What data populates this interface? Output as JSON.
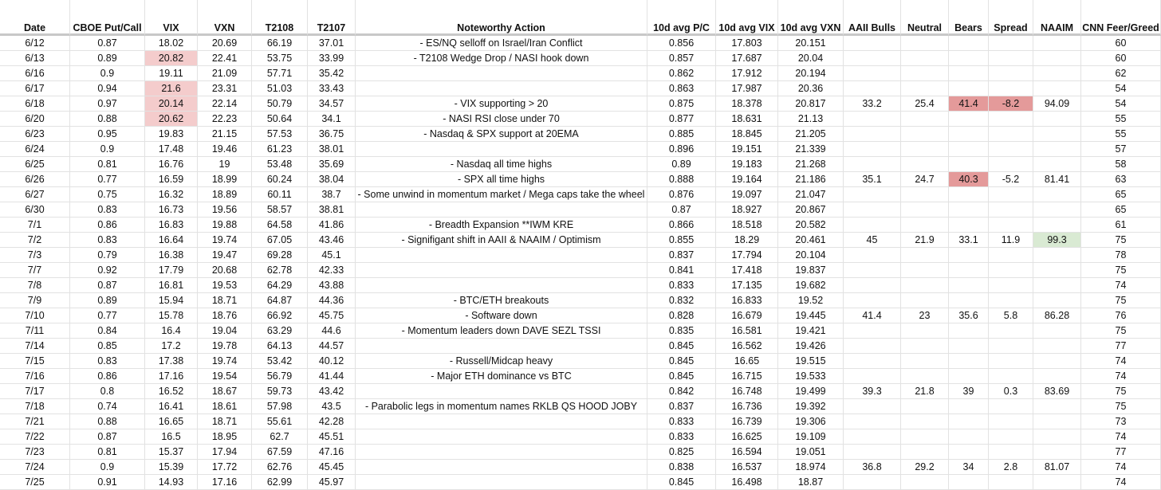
{
  "table": {
    "header": [
      "Date",
      "CBOE Put/Call",
      "VIX",
      "VXN",
      "T2108",
      "T2107",
      "Noteworthy Action",
      "10d avg P/C",
      "10d avg VIX",
      "10d avg VXN",
      "AAII Bulls",
      "Neutral",
      "Bears",
      "Spread",
      "NAAIM",
      "CNN Feer/Greed"
    ],
    "rows": [
      [
        "6/12",
        "0.87",
        "18.02",
        "20.69",
        "66.19",
        "37.01",
        "- ES/NQ selloff on Israel/Iran Conflict",
        "0.856",
        "17.803",
        "20.151",
        null,
        null,
        null,
        null,
        null,
        "60"
      ],
      [
        "6/13",
        "0.89",
        "20.82",
        "22.41",
        "53.75",
        "33.99",
        "- T2108 Wedge Drop / NASI hook down",
        "0.857",
        "17.687",
        "20.04",
        null,
        null,
        null,
        null,
        null,
        "60"
      ],
      [
        "6/16",
        "0.9",
        "19.11",
        "21.09",
        "57.71",
        "35.42",
        null,
        "0.862",
        "17.912",
        "20.194",
        null,
        null,
        null,
        null,
        null,
        "62"
      ],
      [
        "6/17",
        "0.94",
        "21.6",
        "23.31",
        "51.03",
        "33.43",
        null,
        "0.863",
        "17.987",
        "20.36",
        null,
        null,
        null,
        null,
        null,
        "54"
      ],
      [
        "6/18",
        "0.97",
        "20.14",
        "22.14",
        "50.79",
        "34.57",
        "- VIX supporting > 20",
        "0.875",
        "18.378",
        "20.817",
        "33.2",
        "25.4",
        "41.4",
        "-8.2",
        "94.09",
        "54"
      ],
      [
        "6/20",
        "0.88",
        "20.62",
        "22.23",
        "50.64",
        "34.1",
        "- NASI RSI close under 70",
        "0.877",
        "18.631",
        "21.13",
        null,
        null,
        null,
        null,
        null,
        "55"
      ],
      [
        "6/23",
        "0.95",
        "19.83",
        "21.15",
        "57.53",
        "36.75",
        "- Nasdaq & SPX support at 20EMA",
        "0.885",
        "18.845",
        "21.205",
        null,
        null,
        null,
        null,
        null,
        "55"
      ],
      [
        "6/24",
        "0.9",
        "17.48",
        "19.46",
        "61.23",
        "38.01",
        null,
        "0.896",
        "19.151",
        "21.339",
        null,
        null,
        null,
        null,
        null,
        "57"
      ],
      [
        "6/25",
        "0.81",
        "16.76",
        "19",
        "53.48",
        "35.69",
        "- Nasdaq all time highs",
        "0.89",
        "19.183",
        "21.268",
        null,
        null,
        null,
        null,
        null,
        "58"
      ],
      [
        "6/26",
        "0.77",
        "16.59",
        "18.99",
        "60.24",
        "38.04",
        "- SPX all time highs",
        "0.888",
        "19.164",
        "21.186",
        "35.1",
        "24.7",
        "40.3",
        "-5.2",
        "81.41",
        "63"
      ],
      [
        "6/27",
        "0.75",
        "16.32",
        "18.89",
        "60.11",
        "38.7",
        "- Some unwind in momentum market / Mega caps take the wheel",
        "0.876",
        "19.097",
        "21.047",
        null,
        null,
        null,
        null,
        null,
        "65"
      ],
      [
        "6/30",
        "0.83",
        "16.73",
        "19.56",
        "58.57",
        "38.81",
        null,
        "0.87",
        "18.927",
        "20.867",
        null,
        null,
        null,
        null,
        null,
        "65"
      ],
      [
        "7/1",
        "0.86",
        "16.83",
        "19.88",
        "64.58",
        "41.86",
        "- Breadth Expansion **IWM KRE",
        "0.866",
        "18.518",
        "20.582",
        null,
        null,
        null,
        null,
        null,
        "61"
      ],
      [
        "7/2",
        "0.83",
        "16.64",
        "19.74",
        "67.05",
        "43.46",
        "- Signifigant shift in AAII & NAAIM / Optimism",
        "0.855",
        "18.29",
        "20.461",
        "45",
        "21.9",
        "33.1",
        "11.9",
        "99.3",
        "75"
      ],
      [
        "7/3",
        "0.79",
        "16.38",
        "19.47",
        "69.28",
        "45.1",
        null,
        "0.837",
        "17.794",
        "20.104",
        null,
        null,
        null,
        null,
        null,
        "78"
      ],
      [
        "7/7",
        "0.92",
        "17.79",
        "20.68",
        "62.78",
        "42.33",
        null,
        "0.841",
        "17.418",
        "19.837",
        null,
        null,
        null,
        null,
        null,
        "75"
      ],
      [
        "7/8",
        "0.87",
        "16.81",
        "19.53",
        "64.29",
        "43.88",
        null,
        "0.833",
        "17.135",
        "19.682",
        null,
        null,
        null,
        null,
        null,
        "74"
      ],
      [
        "7/9",
        "0.89",
        "15.94",
        "18.71",
        "64.87",
        "44.36",
        "- BTC/ETH breakouts",
        "0.832",
        "16.833",
        "19.52",
        null,
        null,
        null,
        null,
        null,
        "75"
      ],
      [
        "7/10",
        "0.77",
        "15.78",
        "18.76",
        "66.92",
        "45.75",
        "- Software down",
        "0.828",
        "16.679",
        "19.445",
        "41.4",
        "23",
        "35.6",
        "5.8",
        "86.28",
        "76"
      ],
      [
        "7/11",
        "0.84",
        "16.4",
        "19.04",
        "63.29",
        "44.6",
        "- Momentum leaders down DAVE SEZL TSSI",
        "0.835",
        "16.581",
        "19.421",
        null,
        null,
        null,
        null,
        null,
        "75"
      ],
      [
        "7/14",
        "0.85",
        "17.2",
        "19.78",
        "64.13",
        "44.57",
        null,
        "0.845",
        "16.562",
        "19.426",
        null,
        null,
        null,
        null,
        null,
        "77"
      ],
      [
        "7/15",
        "0.83",
        "17.38",
        "19.74",
        "53.42",
        "40.12",
        "- Russell/Midcap heavy",
        "0.845",
        "16.65",
        "19.515",
        null,
        null,
        null,
        null,
        null,
        "74"
      ],
      [
        "7/16",
        "0.86",
        "17.16",
        "19.54",
        "56.79",
        "41.44",
        "- Major ETH dominance vs BTC",
        "0.845",
        "16.715",
        "19.533",
        null,
        null,
        null,
        null,
        null,
        "74"
      ],
      [
        "7/17",
        "0.8",
        "16.52",
        "18.67",
        "59.73",
        "43.42",
        null,
        "0.842",
        "16.748",
        "19.499",
        "39.3",
        "21.8",
        "39",
        "0.3",
        "83.69",
        "75"
      ],
      [
        "7/18",
        "0.74",
        "16.41",
        "18.61",
        "57.98",
        "43.5",
        "- Parabolic legs in momentum names RKLB QS HOOD JOBY",
        "0.837",
        "16.736",
        "19.392",
        null,
        null,
        null,
        null,
        null,
        "75"
      ],
      [
        "7/21",
        "0.88",
        "16.65",
        "18.71",
        "55.61",
        "42.28",
        null,
        "0.833",
        "16.739",
        "19.306",
        null,
        null,
        null,
        null,
        null,
        "73"
      ],
      [
        "7/22",
        "0.87",
        "16.5",
        "18.95",
        "62.7",
        "45.51",
        null,
        "0.833",
        "16.625",
        "19.109",
        null,
        null,
        null,
        null,
        null,
        "74"
      ],
      [
        "7/23",
        "0.81",
        "15.37",
        "17.94",
        "67.59",
        "47.16",
        null,
        "0.825",
        "16.594",
        "19.051",
        null,
        null,
        null,
        null,
        null,
        "77"
      ],
      [
        "7/24",
        "0.9",
        "15.39",
        "17.72",
        "62.76",
        "45.45",
        null,
        "0.838",
        "16.537",
        "18.974",
        "36.8",
        "29.2",
        "34",
        "2.8",
        "81.07",
        "74"
      ],
      [
        "7/25",
        "0.91",
        "14.93",
        "17.16",
        "62.99",
        "45.97",
        null,
        "0.845",
        "16.498",
        "18.87",
        null,
        null,
        null,
        null,
        null,
        "74"
      ]
    ]
  }
}
